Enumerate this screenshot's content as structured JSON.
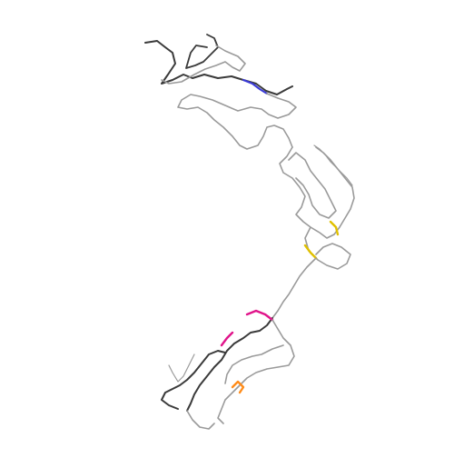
{
  "figure": {
    "background": "#ffffff",
    "subject": "protein-backbone-trace",
    "colors": {
      "coil": "#9a9a9a",
      "coil_dark": "#3a3a3a",
      "blue_segment": "#3b3bd6",
      "pink_segment": "#e0148a",
      "yellow_segment": "#e0c000",
      "orange_segment": "#ff8c1a"
    }
  }
}
